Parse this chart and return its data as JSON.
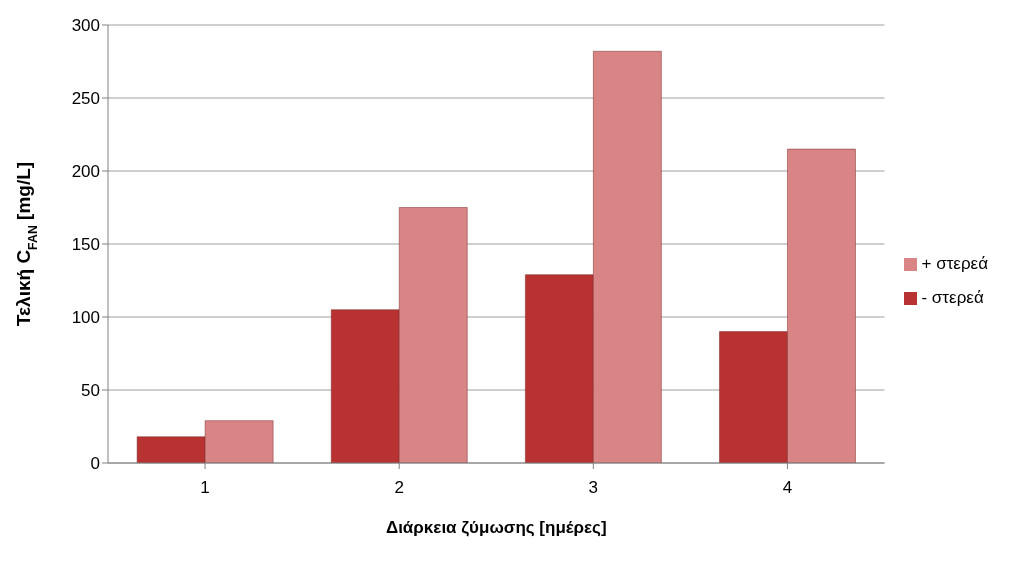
{
  "chart_data": {
    "type": "bar",
    "xlabel": "Διάρκεια ζύμωσης [ημέρες]",
    "ylabel": "Τελική C$_{FAN}$ [mg/L]",
    "categories": [
      "1",
      "2",
      "3",
      "4"
    ],
    "series": [
      {
        "name": "- στερεά",
        "color": "#b83232",
        "values": [
          18,
          105,
          129,
          90
        ]
      },
      {
        "name": "+ στερεά",
        "color": "#d98585",
        "values": [
          29,
          175,
          282,
          215
        ]
      }
    ],
    "ylim": [
      0,
      300
    ],
    "yticks": [
      0,
      50,
      100,
      150,
      200,
      250,
      300
    ],
    "grid": "y",
    "legend": "right"
  }
}
